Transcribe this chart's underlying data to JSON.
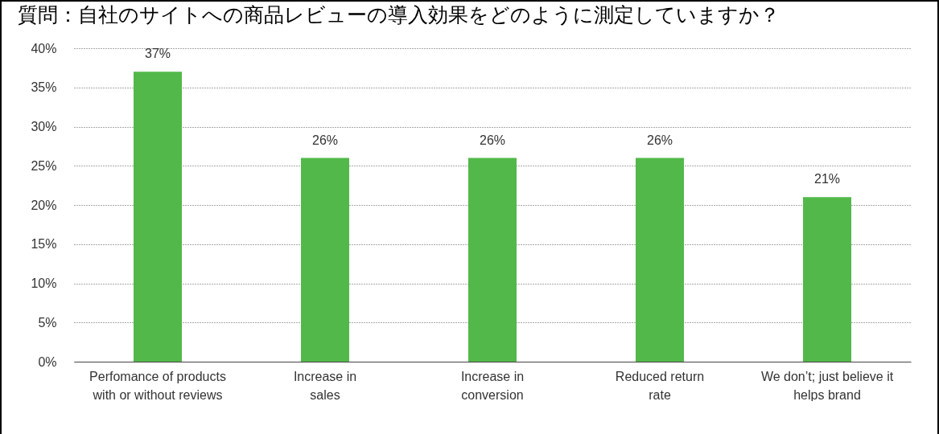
{
  "chart_data": {
    "type": "bar",
    "title": "質問：自社のサイトへの商品レビューの導入効果をどのように測定していますか？",
    "categories": [
      "Perfomance of products with or without reviews",
      "Increase in sales",
      "Increase in conversion",
      "Reduced return rate",
      "We don’t; just believe it helps brand"
    ],
    "values": [
      37,
      26,
      26,
      26,
      21
    ],
    "value_labels": [
      "37%",
      "26%",
      "26%",
      "26%",
      "21%"
    ],
    "color": "#52b84a",
    "ylim": [
      0,
      40
    ],
    "yticks": [
      {
        "value": 0,
        "label": "0%"
      },
      {
        "value": 5,
        "label": "5%"
      },
      {
        "value": 10,
        "label": "10%"
      },
      {
        "value": 15,
        "label": "15%"
      },
      {
        "value": 20,
        "label": "20%"
      },
      {
        "value": 25,
        "label": "25%"
      },
      {
        "value": 30,
        "label": "30%"
      },
      {
        "value": 35,
        "label": "35%"
      },
      {
        "value": 40,
        "label": "40%"
      }
    ],
    "grid": "y"
  }
}
